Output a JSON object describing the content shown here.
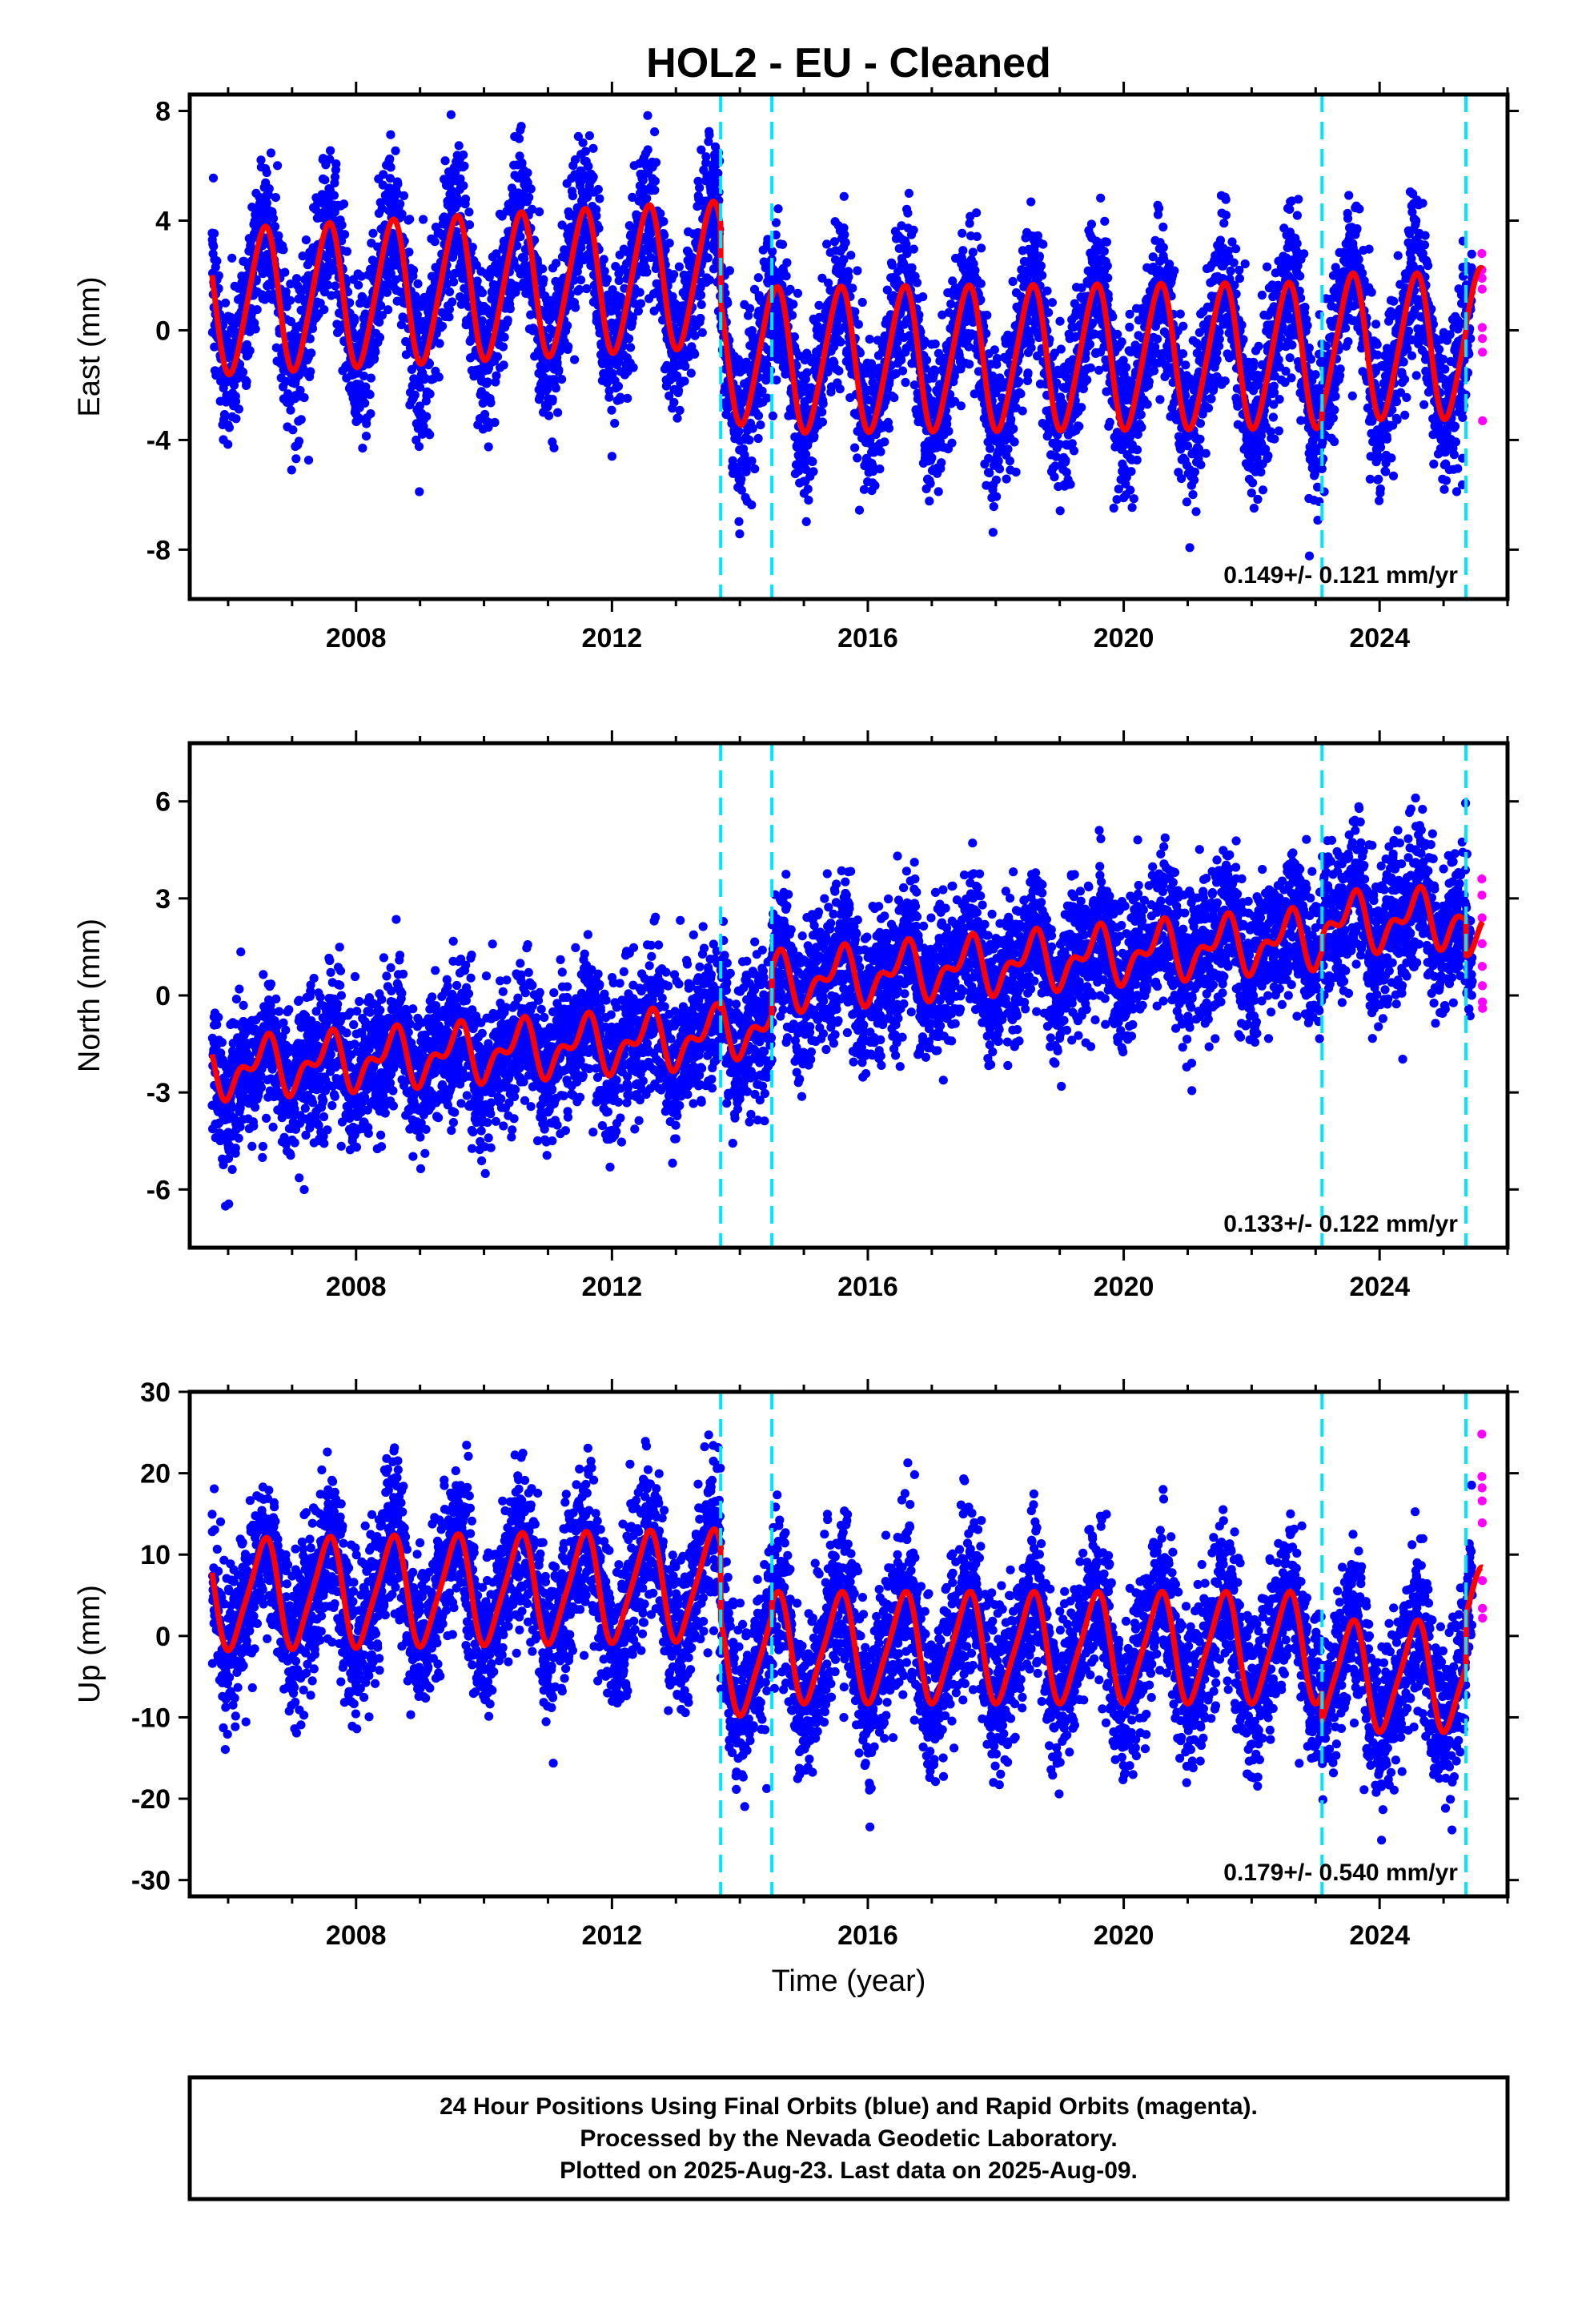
{
  "chart_data": {
    "type": "scatter",
    "title": "HOL2  - EU - Cleaned",
    "xlabel": "Time (year)",
    "x_ticks": [
      2008,
      2012,
      2016,
      2020,
      2024
    ],
    "x_range": [
      2005.4,
      2026.0
    ],
    "step_dates": [
      2013.7,
      2014.5,
      2023.1,
      2025.35
    ],
    "data_start": 2005.75,
    "data_end": 2025.61,
    "rapid_start": 2025.45,
    "series_colors": {
      "final_orbits": "#0000ff",
      "rapid_orbits": "#ff00ff",
      "model_fit": "#ff0000",
      "step_lines": "#00e5ff"
    },
    "panels": [
      {
        "component": "east",
        "ylabel": "East (mm)",
        "ylim": [
          -9.8,
          8.6
        ],
        "y_ticks": [
          -8,
          -4,
          0,
          4,
          8
        ],
        "rate_label": "0.149+/- 0.121 mm/yr",
        "model": {
          "annual_amplitude": 2.6,
          "semiannual_amplitude": 0.3,
          "segments": [
            {
              "start": 2005.75,
              "end": 2013.7,
              "offset": 1.0,
              "rate": 0.13
            },
            {
              "start": 2013.7,
              "end": 2014.5,
              "offset": -0.8,
              "rate": 0.0
            },
            {
              "start": 2014.5,
              "end": 2023.1,
              "offset": -1.1,
              "rate": 0.02
            },
            {
              "start": 2023.1,
              "end": 2025.35,
              "offset": -0.6,
              "rate": 0.0
            },
            {
              "start": 2025.35,
              "end": 2025.61,
              "offset": -0.4,
              "rate": 0.0
            }
          ]
        },
        "scatter_sigma": 1.4,
        "rapid_values": [
          2.8,
          2.2,
          1.9,
          1.5,
          0.1,
          -0.3,
          -0.8,
          -3.3
        ]
      },
      {
        "component": "north",
        "ylabel": "North (mm)",
        "ylim": [
          -7.8,
          7.8
        ],
        "y_ticks": [
          -6,
          -3,
          0,
          3,
          6
        ],
        "rate_label": "0.133+/- 0.122 mm/yr",
        "model": {
          "annual_amplitude": 0.7,
          "semiannual_amplitude": 0.45,
          "segments": [
            {
              "start": 2005.75,
              "end": 2013.7,
              "offset": -2.3,
              "rate": 0.13
            },
            {
              "start": 2013.7,
              "end": 2014.5,
              "offset": -1.0,
              "rate": 0.0
            },
            {
              "start": 2014.5,
              "end": 2023.1,
              "offset": 0.4,
              "rate": 0.16
            },
            {
              "start": 2023.1,
              "end": 2025.35,
              "offset": 2.2,
              "rate": 0.1
            },
            {
              "start": 2025.35,
              "end": 2025.61,
              "offset": 1.3,
              "rate": 0.0
            }
          ]
        },
        "scatter_sigma": 1.1,
        "rapid_values": [
          3.6,
          3.1,
          2.4,
          1.6,
          0.9,
          0.3,
          -0.2,
          -0.4
        ]
      },
      {
        "component": "up",
        "ylabel": "Up (mm)",
        "ylim": [
          -32,
          30
        ],
        "y_ticks": [
          -30,
          -20,
          -10,
          0,
          10,
          20,
          30
        ],
        "rate_label": "0.179+/- 0.540 mm/yr",
        "model": {
          "annual_amplitude": 6.5,
          "semiannual_amplitude": 1.2,
          "segments": [
            {
              "start": 2005.75,
              "end": 2013.7,
              "offset": 5.0,
              "rate": 0.15
            },
            {
              "start": 2013.7,
              "end": 2014.5,
              "offset": -3.0,
              "rate": 0.0
            },
            {
              "start": 2014.5,
              "end": 2023.1,
              "offset": -1.5,
              "rate": 0.0
            },
            {
              "start": 2023.1,
              "end": 2025.35,
              "offset": -5.0,
              "rate": 0.0
            },
            {
              "start": 2025.35,
              "end": 2025.61,
              "offset": 1.5,
              "rate": 0.0
            }
          ]
        },
        "scatter_sigma": 4.8,
        "rapid_values": [
          24.8,
          19.6,
          18.2,
          16.6,
          13.9,
          6.8,
          3.4,
          2.2
        ]
      }
    ]
  },
  "footer": {
    "line1": "24 Hour Positions Using Final Orbits (blue) and Rapid Orbits (magenta).",
    "line2": "Processed by the Nevada Geodetic Laboratory.",
    "line3": "Plotted on 2025-Aug-23. Last data on 2025-Aug-09."
  }
}
